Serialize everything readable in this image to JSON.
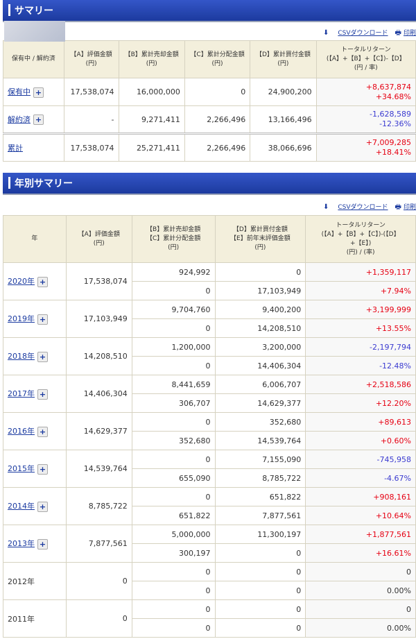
{
  "summary": {
    "title": "サマリー",
    "csv": "CSVダウンロード",
    "print": "印刷",
    "headers": [
      "保有中 / 解約済",
      "【A】評価金額\n(円)",
      "【B】累計売却金額\n(円)",
      "【C】累計分配金額\n(円)",
      "【D】累計買付金額\n(円)",
      "トータルリターン\n(【A】+【B】+【C】)-【D】\n(円 / 率)"
    ],
    "rows": [
      {
        "label": "保有中",
        "a": "17,538,074",
        "b": "16,000,000",
        "c": "0",
        "d": "24,900,200",
        "ret": "+8,637,874",
        "rate": "+34.68%",
        "sign": "pos",
        "expand": true
      },
      {
        "label": "解約済",
        "a": "-",
        "b": "9,271,411",
        "c": "2,266,496",
        "d": "13,166,496",
        "ret": "-1,628,589",
        "rate": "-12.36%",
        "sign": "neg",
        "expand": true
      },
      {
        "label": "累計",
        "a": "17,538,074",
        "b": "25,271,411",
        "c": "2,266,496",
        "d": "38,066,696",
        "ret": "+7,009,285",
        "rate": "+18.41%",
        "sign": "pos",
        "expand": false
      }
    ]
  },
  "yearly": {
    "title": "年別サマリー",
    "csv": "CSVダウンロード",
    "print": "印刷",
    "headers": [
      "年",
      "【A】評価金額\n(円)",
      "【B】累計売却金額\n【C】累計分配金額\n(円)",
      "【D】累計買付金額\n【E】前年末評価金額\n(円)",
      "トータルリターン\n(【A】+【B】+【C】)-(【D】\n+【E】)\n(円) / (率)"
    ],
    "rows": [
      {
        "year": "2020年",
        "a": "17,538,074",
        "b": "924,992",
        "c": "0",
        "d": "0",
        "e": "17,103,949",
        "ret": "+1,359,117",
        "rate": "+7.94%",
        "sign": "pos",
        "link": true
      },
      {
        "year": "2019年",
        "a": "17,103,949",
        "b": "9,704,760",
        "c": "0",
        "d": "9,400,200",
        "e": "14,208,510",
        "ret": "+3,199,999",
        "rate": "+13.55%",
        "sign": "pos",
        "link": true
      },
      {
        "year": "2018年",
        "a": "14,208,510",
        "b": "1,200,000",
        "c": "0",
        "d": "3,200,000",
        "e": "14,406,304",
        "ret": "-2,197,794",
        "rate": "-12.48%",
        "sign": "neg",
        "link": true
      },
      {
        "year": "2017年",
        "a": "14,406,304",
        "b": "8,441,659",
        "c": "306,707",
        "d": "6,006,707",
        "e": "14,629,377",
        "ret": "+2,518,586",
        "rate": "+12.20%",
        "sign": "pos",
        "link": true
      },
      {
        "year": "2016年",
        "a": "14,629,377",
        "b": "0",
        "c": "352,680",
        "d": "352,680",
        "e": "14,539,764",
        "ret": "+89,613",
        "rate": "+0.60%",
        "sign": "pos",
        "link": true
      },
      {
        "year": "2015年",
        "a": "14,539,764",
        "b": "0",
        "c": "655,090",
        "d": "7,155,090",
        "e": "8,785,722",
        "ret": "-745,958",
        "rate": "-4.67%",
        "sign": "neg",
        "link": true
      },
      {
        "year": "2014年",
        "a": "8,785,722",
        "b": "0",
        "c": "651,822",
        "d": "651,822",
        "e": "7,877,561",
        "ret": "+908,161",
        "rate": "+10.64%",
        "sign": "pos",
        "link": true
      },
      {
        "year": "2013年",
        "a": "7,877,561",
        "b": "5,000,000",
        "c": "300,197",
        "d": "11,300,197",
        "e": "0",
        "ret": "+1,877,561",
        "rate": "+16.61%",
        "sign": "pos",
        "link": true
      },
      {
        "year": "2012年",
        "a": "0",
        "b": "0",
        "c": "0",
        "d": "0",
        "e": "0",
        "ret": "0",
        "rate": "0.00%",
        "sign": "zero",
        "link": false
      },
      {
        "year": "2011年",
        "a": "0",
        "b": "0",
        "c": "0",
        "d": "0",
        "e": "0",
        "ret": "0",
        "rate": "0.00%",
        "sign": "zero",
        "link": false
      }
    ]
  }
}
